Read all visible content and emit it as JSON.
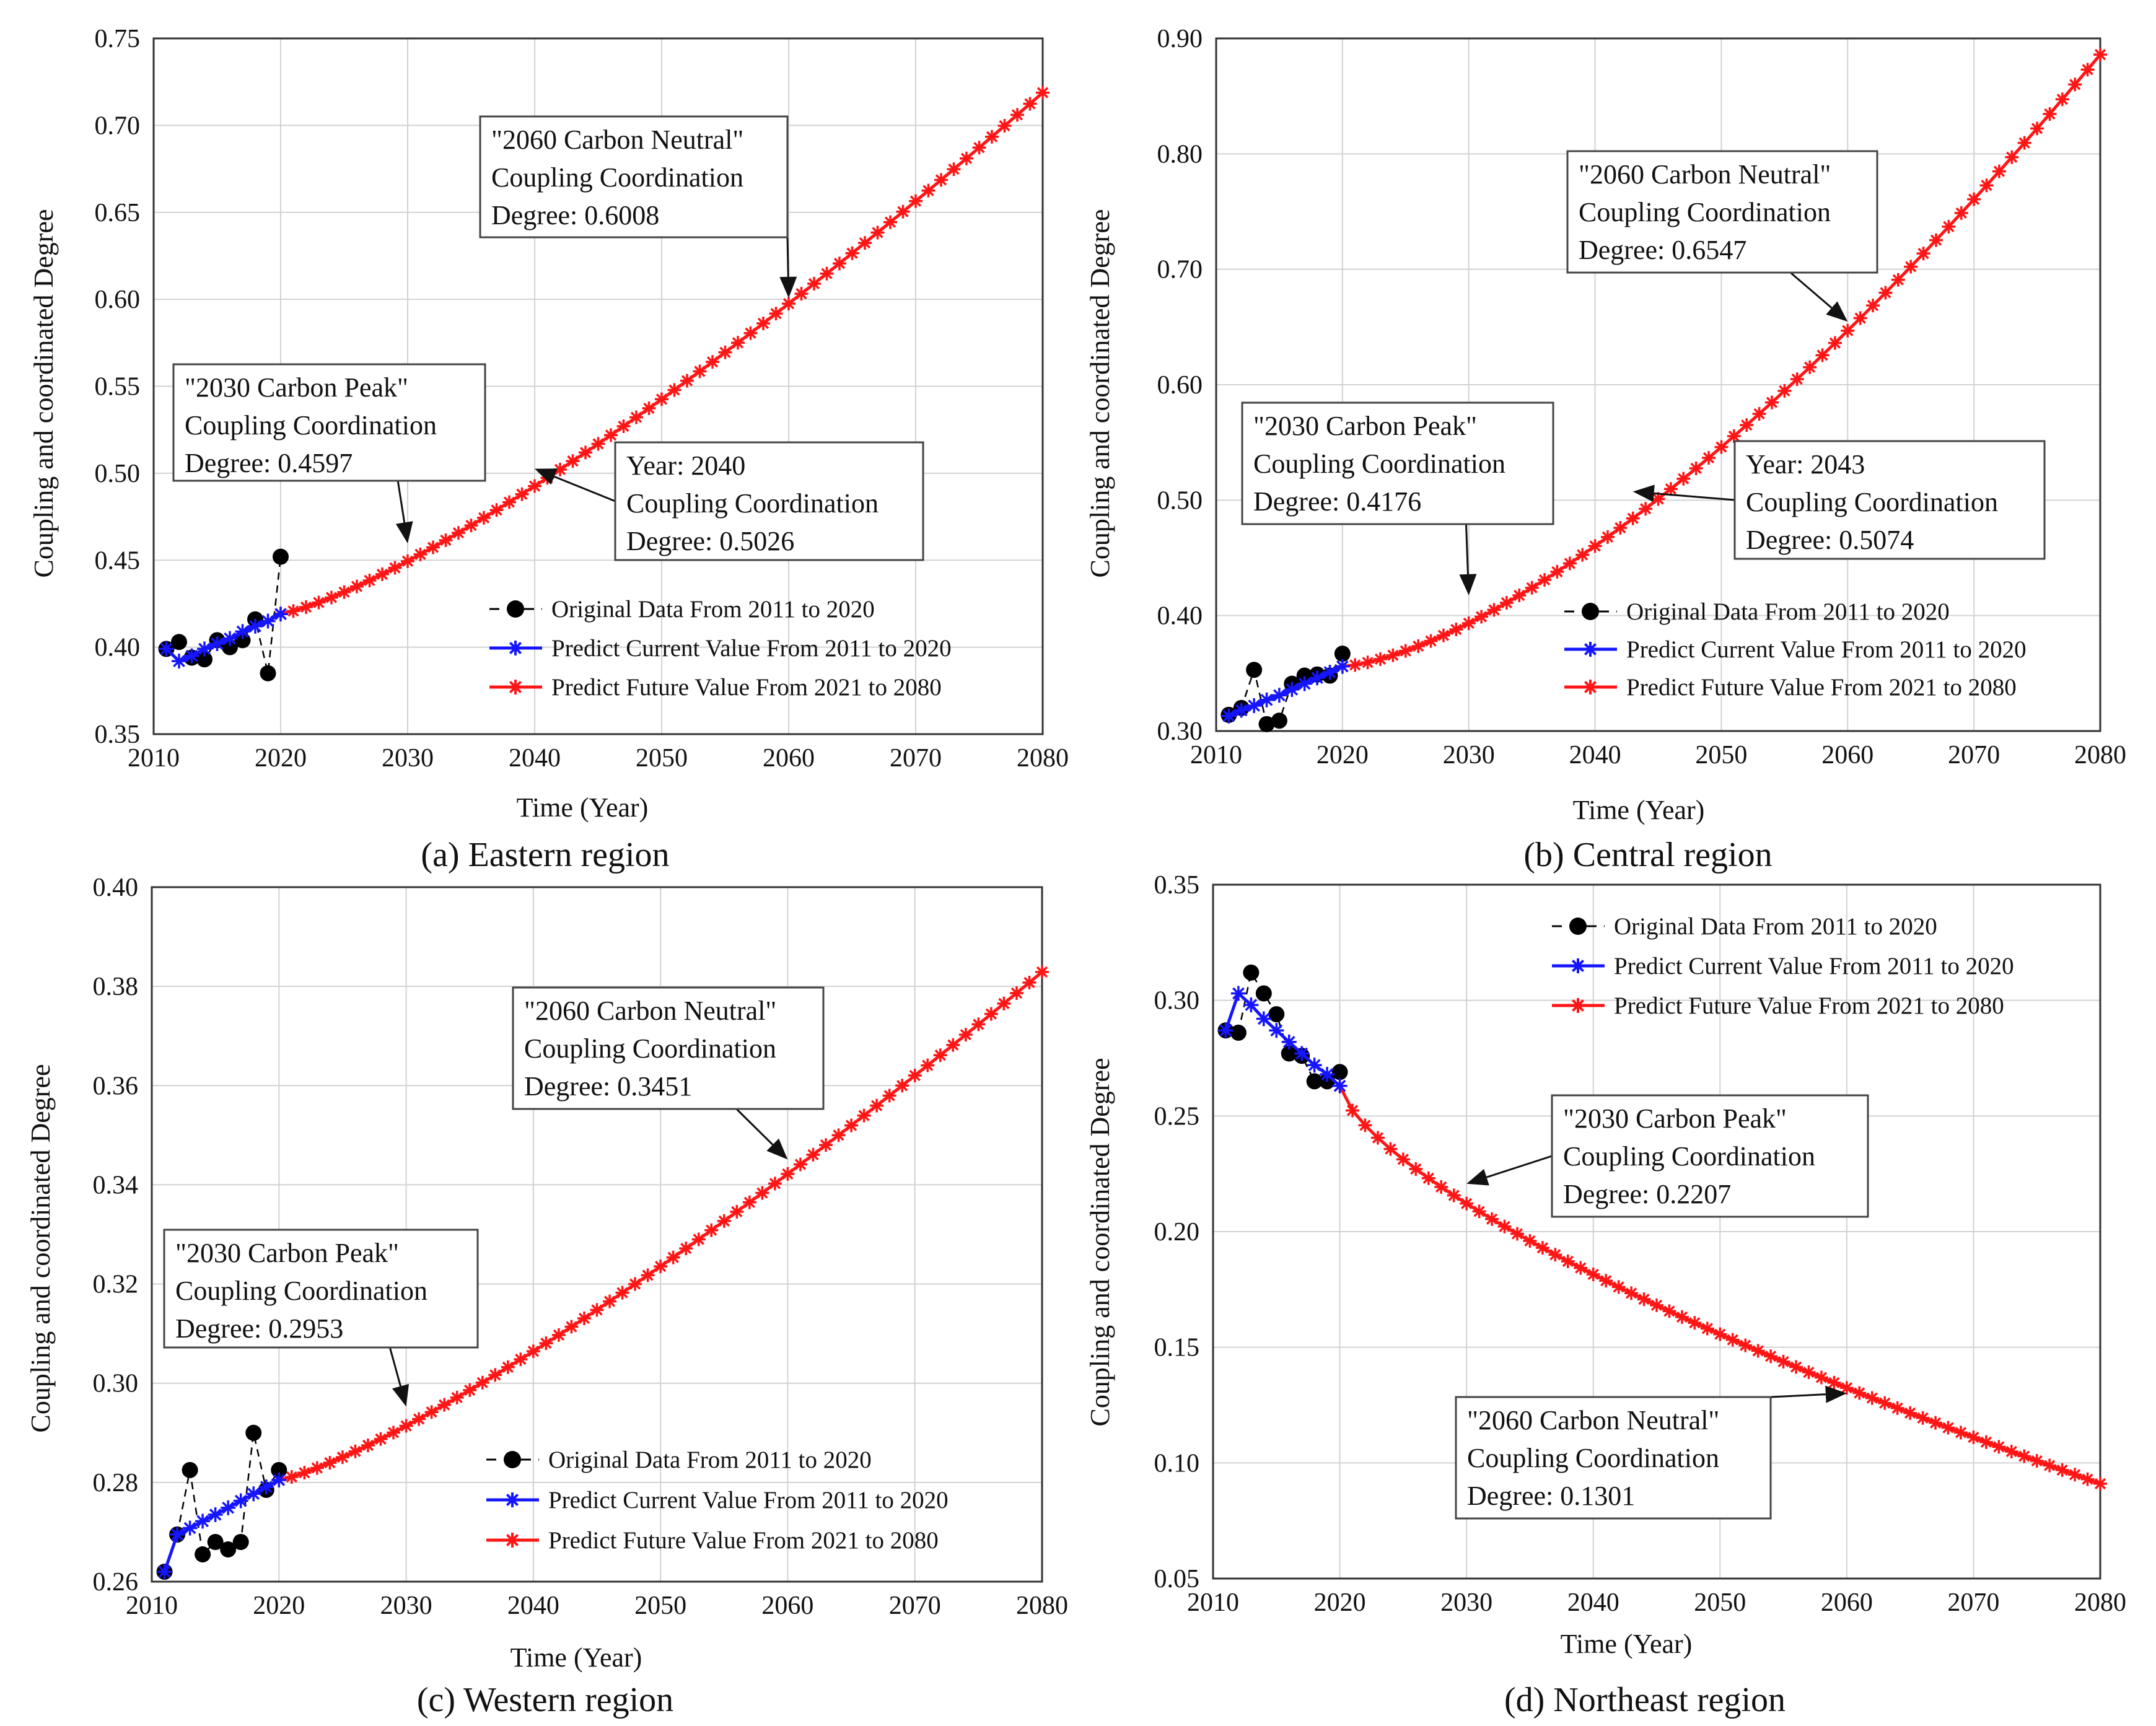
{
  "colors": {
    "original": "#000000",
    "current": "#1515ff",
    "future": "#ff1515",
    "grid": "#d2d2d2",
    "axis": "#333333"
  },
  "chart_data": [
    {
      "type": "line",
      "caption": "(a) Eastern region",
      "xlabel": "Time (Year)",
      "ylabel": "Coupling and coordinated Degree",
      "xlim": [
        2010,
        2080
      ],
      "ylim": [
        0.35,
        0.75
      ],
      "xticks": [
        2010,
        2020,
        2030,
        2040,
        2050,
        2060,
        2070,
        2080
      ],
      "yticks": [
        0.35,
        0.4,
        0.45,
        0.5,
        0.55,
        0.6,
        0.65,
        0.7,
        0.75
      ],
      "tick_labels": [
        "0.35",
        "0.40",
        "0.45",
        "0.50",
        "0.55",
        "0.60",
        "0.65",
        "0.70",
        "0.75"
      ],
      "grid": true,
      "legend_position": "lower-right",
      "legend": [
        "Original Data From 2011 to 2020",
        "Predict Current Value From 2011 to 2020",
        "Predict Future Value From 2021 to 2080"
      ],
      "series": [
        {
          "name": "Original Data From 2011 to 2020",
          "x": [
            2011,
            2012,
            2013,
            2014,
            2015,
            2016,
            2017,
            2018,
            2019,
            2020
          ],
          "y": [
            0.399,
            0.403,
            0.394,
            0.393,
            0.404,
            0.4,
            0.404,
            0.416,
            0.385,
            0.452
          ]
        },
        {
          "name": "Predict Current Value From 2011 to 2020",
          "x": [
            2011,
            2012,
            2013,
            2014,
            2015,
            2016,
            2017,
            2018,
            2019,
            2020
          ],
          "y": [
            0.399,
            0.392,
            0.395,
            0.399,
            0.402,
            0.405,
            0.409,
            0.412,
            0.415,
            0.419
          ]
        },
        {
          "name": "Predict Future Value From 2021 to 2080",
          "x_start": 2020,
          "x_end": 2080,
          "y_start": 0.4192,
          "y_end": 0.7188,
          "curve": 1.28
        }
      ],
      "annotations": [
        {
          "lines": [
            "\"2030 Carbon Peak\"",
            "Coupling Coordination",
            "Degree: 0.4597"
          ],
          "target_x": 2030,
          "target_y": 0.4597
        },
        {
          "lines": [
            "\"2060 Carbon Neutral\"",
            "Coupling Coordination",
            "Degree: 0.6008"
          ],
          "target_x": 2060,
          "target_y": 0.6008
        },
        {
          "lines": [
            "Year: 2040",
            "Coupling Coordination",
            "Degree: 0.5026"
          ],
          "target_x": 2040,
          "target_y": 0.5026
        }
      ]
    },
    {
      "type": "line",
      "caption": "(b) Central region",
      "xlabel": "Time (Year)",
      "ylabel": "Coupling and coordinated Degree",
      "xlim": [
        2010,
        2080
      ],
      "ylim": [
        0.3,
        0.9
      ],
      "xticks": [
        2010,
        2020,
        2030,
        2040,
        2050,
        2060,
        2070,
        2080
      ],
      "yticks": [
        0.3,
        0.4,
        0.5,
        0.6,
        0.7,
        0.8,
        0.9
      ],
      "tick_labels": [
        "0.30",
        "0.40",
        "0.50",
        "0.60",
        "0.70",
        "0.80",
        "0.90"
      ],
      "grid": true,
      "legend_position": "lower-right",
      "legend": [
        "Original Data From 2011 to 2020",
        "Predict Current Value From 2011 to 2020",
        "Predict Future Value From 2021 to 2080"
      ],
      "series": [
        {
          "name": "Original Data From 2011 to 2020",
          "x": [
            2011,
            2012,
            2013,
            2014,
            2015,
            2016,
            2017,
            2018,
            2019,
            2020
          ],
          "y": [
            0.314,
            0.32,
            0.353,
            0.306,
            0.309,
            0.341,
            0.348,
            0.349,
            0.348,
            0.367
          ]
        },
        {
          "name": "Predict Current Value From 2011 to 2020",
          "x": [
            2011,
            2012,
            2013,
            2014,
            2015,
            2016,
            2017,
            2018,
            2019,
            2020
          ],
          "y": [
            0.313,
            0.318,
            0.322,
            0.327,
            0.331,
            0.336,
            0.341,
            0.346,
            0.351,
            0.356
          ]
        },
        {
          "name": "Predict Future Value From 2021 to 2080",
          "x_start": 2020,
          "x_end": 2080,
          "y_start": 0.356,
          "y_end": 0.886,
          "curve": 1.48
        }
      ],
      "annotations": [
        {
          "lines": [
            "\"2030 Carbon Peak\"",
            "Coupling Coordination",
            "Degree: 0.4176"
          ],
          "target_x": 2030,
          "target_y": 0.4176
        },
        {
          "lines": [
            "\"2060 Carbon Neutral\"",
            "Coupling Coordination",
            "Degree: 0.6547"
          ],
          "target_x": 2060,
          "target_y": 0.6547
        },
        {
          "lines": [
            "Year: 2043",
            "Coupling Coordination",
            "Degree: 0.5074"
          ],
          "target_x": 2043,
          "target_y": 0.5074
        }
      ]
    },
    {
      "type": "line",
      "caption": "(c) Western region",
      "xlabel": "Time (Year)",
      "ylabel": "Coupling and coordinated Degree",
      "xlim": [
        2010,
        2080
      ],
      "ylim": [
        0.26,
        0.4
      ],
      "xticks": [
        2010,
        2020,
        2030,
        2040,
        2050,
        2060,
        2070,
        2080
      ],
      "yticks": [
        0.26,
        0.28,
        0.3,
        0.32,
        0.34,
        0.36,
        0.38,
        0.4
      ],
      "tick_labels": [
        "0.26",
        "0.28",
        "0.30",
        "0.32",
        "0.34",
        "0.36",
        "0.38",
        "0.40"
      ],
      "grid": true,
      "legend_position": "lower-right",
      "legend": [
        "Original Data From 2011 to 2020",
        "Predict Current Value From 2011 to 2020",
        "Predict Future Value From 2021 to 2080"
      ],
      "series": [
        {
          "name": "Original Data From 2011 to 2020",
          "x": [
            2011,
            2012,
            2013,
            2014,
            2015,
            2016,
            2017,
            2018,
            2019,
            2020
          ],
          "y": [
            0.262,
            0.2695,
            0.2825,
            0.2655,
            0.268,
            0.2665,
            0.268,
            0.29,
            0.2785,
            0.2825
          ]
        },
        {
          "name": "Predict Current Value From 2011 to 2020",
          "x": [
            2011,
            2012,
            2013,
            2014,
            2015,
            2016,
            2017,
            2018,
            2019,
            2020
          ],
          "y": [
            0.262,
            0.2695,
            0.2708,
            0.2722,
            0.2735,
            0.2749,
            0.2763,
            0.2777,
            0.2791,
            0.2805
          ]
        },
        {
          "name": "Predict Future Value From 2021 to 2080",
          "x_start": 2020,
          "x_end": 2080,
          "y_start": 0.2805,
          "y_end": 0.3829,
          "curve": 1.25
        }
      ],
      "annotations": [
        {
          "lines": [
            "\"2030 Carbon Peak\"",
            "Coupling Coordination",
            "Degree: 0.2953"
          ],
          "target_x": 2030,
          "target_y": 0.2953
        },
        {
          "lines": [
            "\"2060 Carbon Neutral\"",
            "Coupling Coordination",
            "Degree: 0.3451"
          ],
          "target_x": 2060,
          "target_y": 0.3451
        }
      ]
    },
    {
      "type": "line",
      "caption": "(d) Northeast region",
      "xlabel": "Time (Year)",
      "ylabel": "Coupling and coordinated Degree",
      "xlim": [
        2010,
        2080
      ],
      "ylim": [
        0.05,
        0.35
      ],
      "xticks": [
        2010,
        2020,
        2030,
        2040,
        2050,
        2060,
        2070,
        2080
      ],
      "yticks": [
        0.05,
        0.1,
        0.15,
        0.2,
        0.25,
        0.3,
        0.35
      ],
      "tick_labels": [
        "0.05",
        "0.10",
        "0.15",
        "0.20",
        "0.25",
        "0.30",
        "0.35"
      ],
      "grid": true,
      "legend_position": "top-right",
      "legend": [
        "Original Data From 2011 to 2020",
        "Predict Current Value From 2011 to 2020",
        "Predict Future Value From 2021 to 2080"
      ],
      "series": [
        {
          "name": "Original Data From 2011 to 2020",
          "x": [
            2011,
            2012,
            2013,
            2014,
            2015,
            2016,
            2017,
            2018,
            2019,
            2020
          ],
          "y": [
            0.287,
            0.286,
            0.312,
            0.303,
            0.294,
            0.277,
            0.276,
            0.265,
            0.265,
            0.269
          ]
        },
        {
          "name": "Predict Current Value From 2011 to 2020",
          "x": [
            2011,
            2012,
            2013,
            2014,
            2015,
            2016,
            2017,
            2018,
            2019,
            2020
          ],
          "y": [
            0.287,
            0.303,
            0.298,
            0.292,
            0.287,
            0.282,
            0.277,
            0.272,
            0.268,
            0.263
          ]
        },
        {
          "name": "Predict Future Value From 2021 to 2080",
          "x_start": 2020,
          "x_end": 2080,
          "y_start": 0.263,
          "y_end": 0.091,
          "curve": 0.68
        }
      ],
      "annotations": [
        {
          "lines": [
            "\"2030 Carbon Peak\"",
            "Coupling Coordination",
            "Degree: 0.2207"
          ],
          "target_x": 2030,
          "target_y": 0.2207
        },
        {
          "lines": [
            "\"2060 Carbon Neutral\"",
            "Coupling Coordination",
            "Degree: 0.1301"
          ],
          "target_x": 2060,
          "target_y": 0.1301
        }
      ]
    }
  ]
}
